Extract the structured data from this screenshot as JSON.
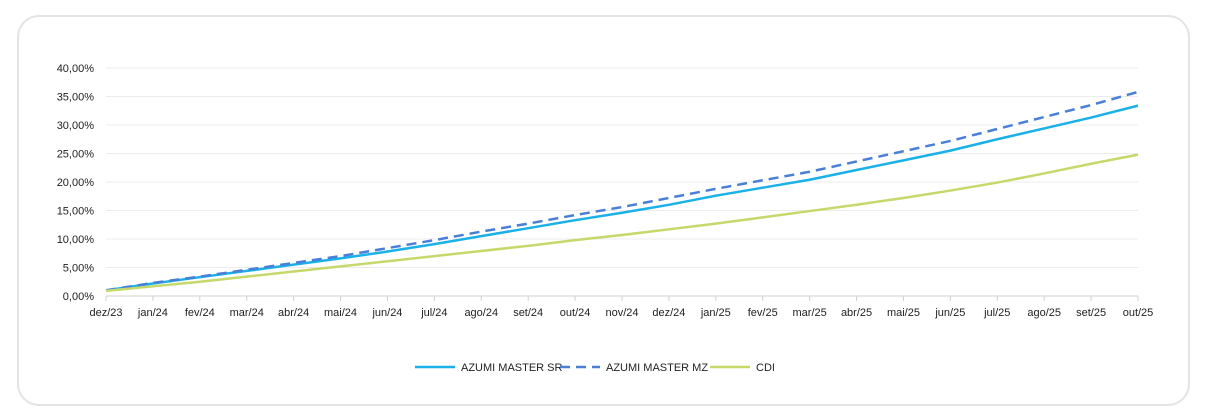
{
  "chart_data": {
    "type": "line",
    "title": "",
    "xlabel": "",
    "ylabel": "",
    "x": [
      "dez/23",
      "jan/24",
      "fev/24",
      "mar/24",
      "abr/24",
      "mai/24",
      "jun/24",
      "jul/24",
      "ago/24",
      "set/24",
      "out/24",
      "nov/24",
      "dez/24",
      "jan/25",
      "fev/25",
      "mar/25",
      "abr/25",
      "mai/25",
      "jun/25",
      "jul/25",
      "ago/25",
      "set/25",
      "out/25"
    ],
    "ylim": [
      0,
      40
    ],
    "yticks": [
      0,
      5,
      10,
      15,
      20,
      25,
      30,
      35,
      40
    ],
    "ytick_labels": [
      "0,00%",
      "5,00%",
      "10,00%",
      "15,00%",
      "20,00%",
      "25,00%",
      "30,00%",
      "35,00%",
      "40,00%"
    ],
    "grid": true,
    "legend_position": "bottom",
    "series": [
      {
        "name": "AZUMI MASTER SR",
        "color": "#1ab0e8",
        "dash": false,
        "values": [
          1.0,
          2.2,
          3.3,
          4.4,
          5.5,
          6.6,
          7.8,
          9.1,
          10.5,
          11.9,
          13.3,
          14.6,
          16.0,
          17.6,
          19.0,
          20.4,
          22.1,
          23.8,
          25.5,
          27.5,
          29.4,
          31.3,
          33.4
        ]
      },
      {
        "name": "AZUMI MASTER MZ",
        "color": "#4a7fd8",
        "dash": true,
        "values": [
          1.0,
          2.3,
          3.4,
          4.6,
          5.8,
          7.0,
          8.4,
          9.8,
          11.3,
          12.7,
          14.2,
          15.6,
          17.2,
          18.8,
          20.3,
          21.8,
          23.6,
          25.4,
          27.2,
          29.3,
          31.4,
          33.5,
          35.8
        ]
      },
      {
        "name": "CDI",
        "color": "#c5d96a",
        "dash": false,
        "values": [
          0.9,
          1.7,
          2.5,
          3.4,
          4.3,
          5.2,
          6.1,
          7.0,
          7.9,
          8.8,
          9.8,
          10.7,
          11.7,
          12.7,
          13.8,
          14.9,
          16.0,
          17.2,
          18.5,
          19.9,
          21.5,
          23.2,
          24.8
        ]
      }
    ]
  }
}
